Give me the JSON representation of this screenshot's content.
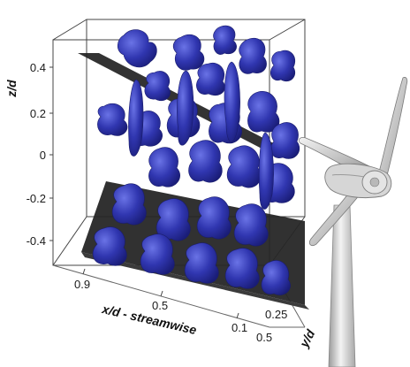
{
  "figure": {
    "z_axis": {
      "label": "z/d",
      "ticks": [
        "0.4",
        "0.2",
        "0",
        "-0.2",
        "-0.4"
      ]
    },
    "x_axis": {
      "label": "x/d - streamwise",
      "ticks": [
        "0.9",
        "0.5",
        "0.1"
      ]
    },
    "y_axis": {
      "label": "y/d",
      "ticks": [
        "0.25",
        "0.5"
      ]
    },
    "colors": {
      "isosurface": "#2b2fa6",
      "isosurface_highlight": "#5a63d8",
      "rotor_plane": "#2a2a2a",
      "turbine": "#c8c8c8",
      "frame": "#444444"
    },
    "icons": [
      "wind-turbine-icon"
    ]
  }
}
